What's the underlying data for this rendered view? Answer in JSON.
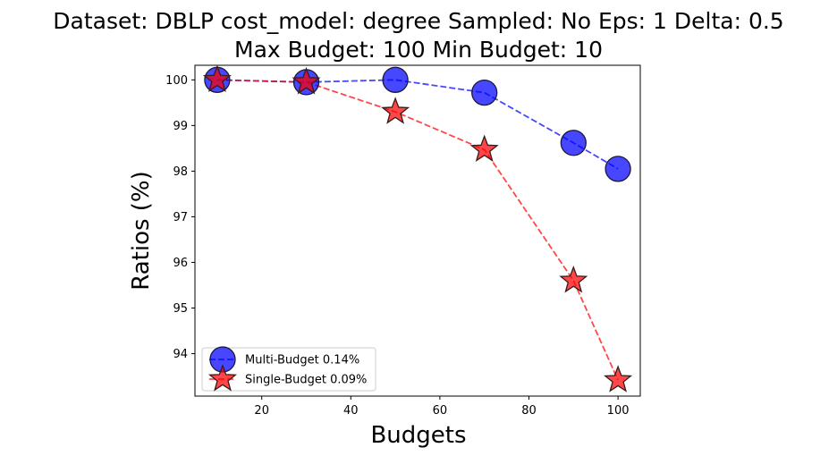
{
  "chart_data": {
    "type": "line",
    "title_line1": "Dataset: DBLP cost_model: degree Sampled: No Eps: 1 Delta: 0.5",
    "title_line2": "Max Budget: 100 Min Budget: 10",
    "xlabel": "Budgets",
    "ylabel": "Ratios (%)",
    "x": [
      10,
      30,
      50,
      70,
      90,
      100
    ],
    "xlim": [
      5,
      105
    ],
    "ylim": [
      93.07,
      100.32
    ],
    "xticks": [
      20,
      40,
      60,
      80,
      100
    ],
    "yticks": [
      94,
      95,
      96,
      97,
      98,
      99,
      100
    ],
    "legend_position": "lower-left",
    "series": [
      {
        "name": "Multi-Budget 0.14%",
        "marker": "circle",
        "color": "#0000ff",
        "values": [
          100.0,
          99.95,
          100.0,
          99.72,
          98.62,
          98.05
        ]
      },
      {
        "name": "Single-Budget 0.09%",
        "marker": "star",
        "color": "#ff0000",
        "values": [
          100.0,
          99.95,
          99.3,
          98.47,
          95.6,
          93.42
        ]
      }
    ]
  }
}
